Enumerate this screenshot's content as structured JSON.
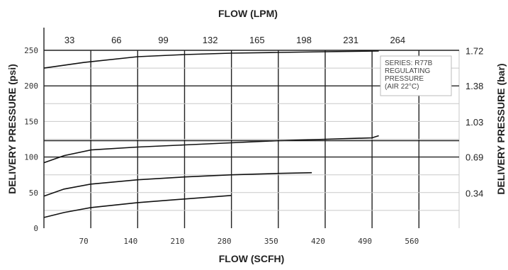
{
  "chart_data": {
    "type": "line",
    "title_top": "FLOW (LPM)",
    "xlabel": "FLOW (SCFH)",
    "ylabel": "DELIVERY PRESSURE (psi)",
    "ylabel_right": "DELIVERY PRESSURE (bar)",
    "x_ticks_bottom": [
      "70",
      "140",
      "210",
      "280",
      "350",
      "420",
      "490",
      "560"
    ],
    "x_ticks_top": [
      "33",
      "66",
      "99",
      "132",
      "165",
      "198",
      "231",
      "264"
    ],
    "y_ticks_left": [
      "0",
      "50",
      "100",
      "150",
      "200",
      "250"
    ],
    "y_ticks_right": [
      "0.34",
      "0.69",
      "1.03",
      "1.38",
      "1.72"
    ],
    "xlim": [
      0,
      620
    ],
    "ylim": [
      0,
      250
    ],
    "grid": true,
    "annotation": [
      "SERIES: R77B",
      "REGULATING",
      "PRESSURE",
      "(AIR 22°C)"
    ],
    "series": [
      {
        "x": [
          0,
          60,
          140,
          210,
          280,
          350,
          420,
          500
        ],
        "y": [
          225,
          233,
          241,
          244,
          246,
          247,
          248,
          249
        ]
      },
      {
        "x": [
          0,
          30,
          70,
          140,
          210,
          280,
          350,
          420,
          490,
          500
        ],
        "y": [
          92,
          102,
          110,
          114,
          117,
          120,
          123,
          125,
          127,
          130
        ]
      },
      {
        "x": [
          0,
          30,
          70,
          140,
          210,
          280,
          350,
          400
        ],
        "y": [
          45,
          55,
          62,
          68,
          72,
          75,
          77,
          78
        ]
      },
      {
        "x": [
          0,
          30,
          70,
          140,
          210,
          280
        ],
        "y": [
          15,
          22,
          29,
          36,
          41,
          46
        ]
      }
    ]
  }
}
